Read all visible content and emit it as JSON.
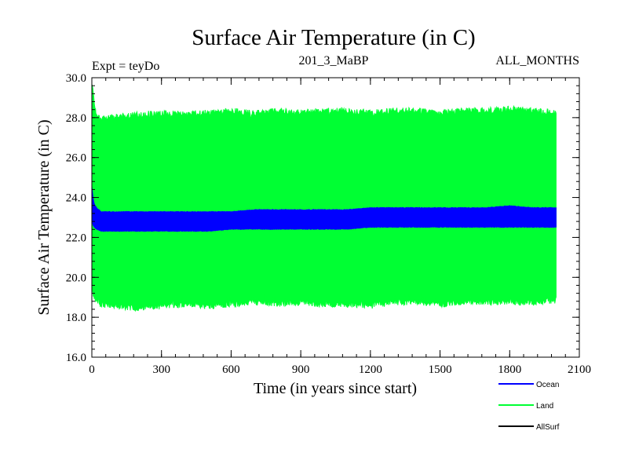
{
  "chart_data": {
    "type": "line",
    "title": "Surface Air Temperature (in C)",
    "subtitle_left": "Expt = teyDo",
    "subtitle_center": "201_3_MaBP",
    "subtitle_right": "ALL_MONTHS",
    "xlabel": "Time (in years since start)",
    "ylabel": "Surface Air Temperature (in C)",
    "xlim": [
      0,
      2100
    ],
    "ylim": [
      16.0,
      30.0
    ],
    "x_ticks": [
      0,
      300,
      600,
      900,
      1200,
      1500,
      1800,
      2100
    ],
    "x_tick_labels": [
      "0",
      "300",
      "600",
      "900",
      "1200",
      "1500",
      "1800",
      "2100"
    ],
    "y_ticks": [
      16.0,
      18.0,
      20.0,
      22.0,
      24.0,
      26.0,
      28.0,
      30.0
    ],
    "y_tick_labels": [
      "16.0",
      "18.0",
      "20.0",
      "22.0",
      "24.0",
      "26.0",
      "28.0",
      "30.0"
    ],
    "legend_position": "bottom-right",
    "series": [
      {
        "name": "Land",
        "color": "#00ff33",
        "x": [
          0,
          5,
          10,
          20,
          40,
          100,
          200,
          300,
          400,
          500,
          600,
          700,
          800,
          900,
          1000,
          1100,
          1200,
          1300,
          1400,
          1500,
          1600,
          1700,
          1800,
          1900,
          2000
        ],
        "upper": [
          29.9,
          29.7,
          28.8,
          28.3,
          28.1,
          28.2,
          28.3,
          28.4,
          28.3,
          28.4,
          28.5,
          28.4,
          28.5,
          28.4,
          28.5,
          28.5,
          28.4,
          28.5,
          28.5,
          28.4,
          28.5,
          28.5,
          28.6,
          28.5,
          28.4
        ],
        "lower": [
          19.5,
          18.9,
          18.7,
          18.6,
          18.5,
          18.4,
          18.3,
          18.4,
          18.5,
          18.4,
          18.5,
          18.6,
          18.5,
          18.6,
          18.5,
          18.5,
          18.4,
          18.6,
          18.6,
          18.5,
          18.6,
          18.6,
          18.6,
          18.6,
          18.7
        ]
      },
      {
        "name": "Ocean",
        "color": "#0000ff",
        "x": [
          0,
          5,
          10,
          20,
          40,
          100,
          200,
          300,
          400,
          500,
          600,
          700,
          800,
          900,
          1000,
          1100,
          1200,
          1300,
          1400,
          1500,
          1600,
          1700,
          1800,
          1900,
          2000
        ],
        "upper": [
          24.6,
          24.0,
          23.7,
          23.5,
          23.3,
          23.3,
          23.3,
          23.3,
          23.3,
          23.3,
          23.3,
          23.4,
          23.4,
          23.4,
          23.4,
          23.4,
          23.5,
          23.5,
          23.5,
          23.5,
          23.5,
          23.5,
          23.6,
          23.5,
          23.5
        ],
        "lower": [
          22.9,
          22.6,
          22.5,
          22.4,
          22.3,
          22.3,
          22.3,
          22.3,
          22.3,
          22.3,
          22.4,
          22.4,
          22.4,
          22.4,
          22.4,
          22.4,
          22.5,
          22.5,
          22.5,
          22.5,
          22.5,
          22.5,
          22.5,
          22.5,
          22.5
        ]
      },
      {
        "name": "AllSurf",
        "color": "#000000",
        "x": [],
        "upper": [],
        "lower": []
      }
    ]
  }
}
